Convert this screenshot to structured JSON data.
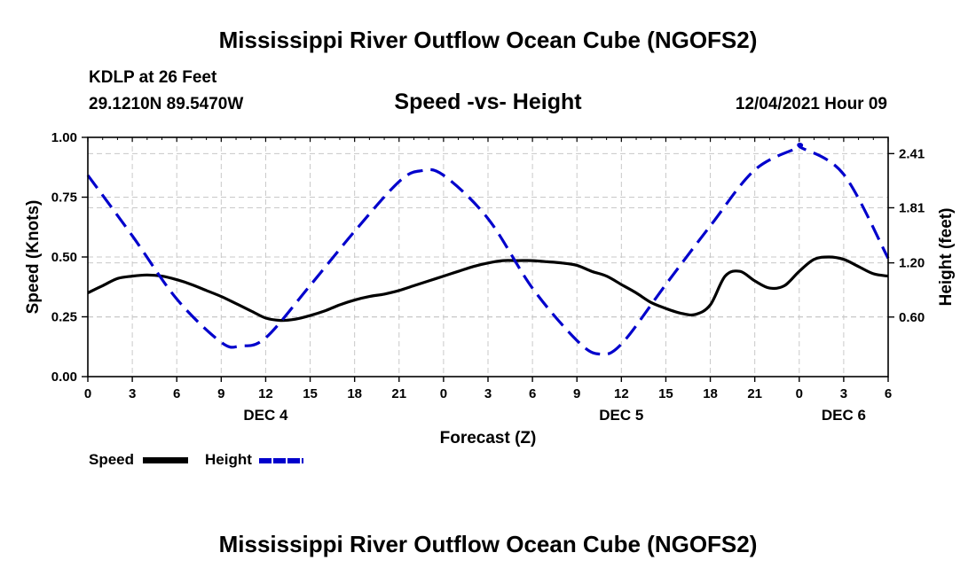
{
  "header": {
    "title": "Mississippi River Outflow Ocean Cube (NGOFS2)",
    "station": "KDLP at 26 Feet",
    "coords": "29.1210N  89.5470W",
    "subtitle": "Speed -vs- Height",
    "runtime": "12/04/2021 Hour 09"
  },
  "footer": {
    "title": "Mississippi River Outflow Ocean Cube (NGOFS2)"
  },
  "legend": {
    "speed_label": "Speed",
    "height_label": "Height"
  },
  "colors": {
    "speed": "#000000",
    "height": "#0000cc",
    "grid": "#c8c8c8"
  },
  "chart_data": {
    "type": "line",
    "title": "Speed -vs- Height",
    "xlabel": "Forecast (Z)",
    "ylabel": "Speed (Knots)",
    "y2label": "Height (feet)",
    "x_unit": "hours since Dec 4 00Z",
    "xlim": [
      0,
      54
    ],
    "ylim": [
      0,
      1.0
    ],
    "y2lim": [
      -0.06,
      2.59
    ],
    "x_ticks": [
      0,
      3,
      6,
      9,
      12,
      15,
      18,
      21,
      24,
      27,
      30,
      33,
      36,
      39,
      42,
      45,
      48,
      51,
      54
    ],
    "x_tick_labels": [
      "0",
      "3",
      "6",
      "9",
      "12",
      "15",
      "18",
      "21",
      "0",
      "3",
      "6",
      "9",
      "12",
      "15",
      "18",
      "21",
      "0",
      "3",
      "6"
    ],
    "date_labels": [
      {
        "x": 12,
        "label": "DEC 4"
      },
      {
        "x": 36,
        "label": "DEC 5"
      },
      {
        "x": 51,
        "label": "DEC 6"
      }
    ],
    "y_ticks": [
      0,
      0.25,
      0.5,
      0.75,
      1.0
    ],
    "y_tick_labels": [
      "0.00",
      "0.25",
      "0.50",
      "0.75",
      "1.00"
    ],
    "y2_ticks": [
      0.6,
      1.2,
      1.81,
      2.41
    ],
    "y2_tick_labels": [
      "0.60",
      "1.20",
      "1.81",
      "2.41"
    ],
    "series": [
      {
        "name": "Speed",
        "axis": "left",
        "style": "solid",
        "x": [
          0,
          1,
          2,
          3,
          4,
          5,
          6,
          7,
          8,
          9,
          10,
          11,
          12,
          13,
          14,
          15,
          16,
          17,
          18,
          19,
          20,
          21,
          22,
          23,
          24,
          25,
          26,
          27,
          28,
          29,
          30,
          31,
          32,
          33,
          34,
          35,
          36,
          37,
          38,
          39,
          40,
          41,
          42,
          43,
          44,
          45,
          46,
          47,
          48,
          49,
          50,
          51,
          52,
          53,
          54
        ],
        "values": [
          0.35,
          0.38,
          0.41,
          0.42,
          0.425,
          0.42,
          0.405,
          0.385,
          0.36,
          0.335,
          0.305,
          0.275,
          0.245,
          0.235,
          0.24,
          0.255,
          0.275,
          0.3,
          0.32,
          0.335,
          0.345,
          0.36,
          0.38,
          0.4,
          0.42,
          0.44,
          0.46,
          0.475,
          0.485,
          0.485,
          0.485,
          0.48,
          0.475,
          0.465,
          0.44,
          0.42,
          0.385,
          0.35,
          0.31,
          0.285,
          0.265,
          0.26,
          0.3,
          0.42,
          0.44,
          0.4,
          0.37,
          0.38,
          0.44,
          0.49,
          0.5,
          0.49,
          0.46,
          0.43,
          0.42
        ]
      },
      {
        "name": "Height",
        "axis": "right",
        "style": "dashed",
        "x": [
          0,
          3,
          6,
          9,
          10.3,
          12,
          15,
          18,
          21,
          22.5,
          24,
          27,
          30,
          33,
          34.5,
          36,
          39,
          42,
          45,
          48,
          48.1,
          51,
          54
        ],
        "values": [
          2.17,
          1.5,
          0.8,
          0.32,
          0.28,
          0.37,
          0.95,
          1.55,
          2.1,
          2.22,
          2.17,
          1.69,
          0.92,
          0.34,
          0.19,
          0.3,
          0.96,
          1.61,
          2.23,
          2.48,
          2.48,
          2.18,
          1.25
        ]
      }
    ]
  }
}
